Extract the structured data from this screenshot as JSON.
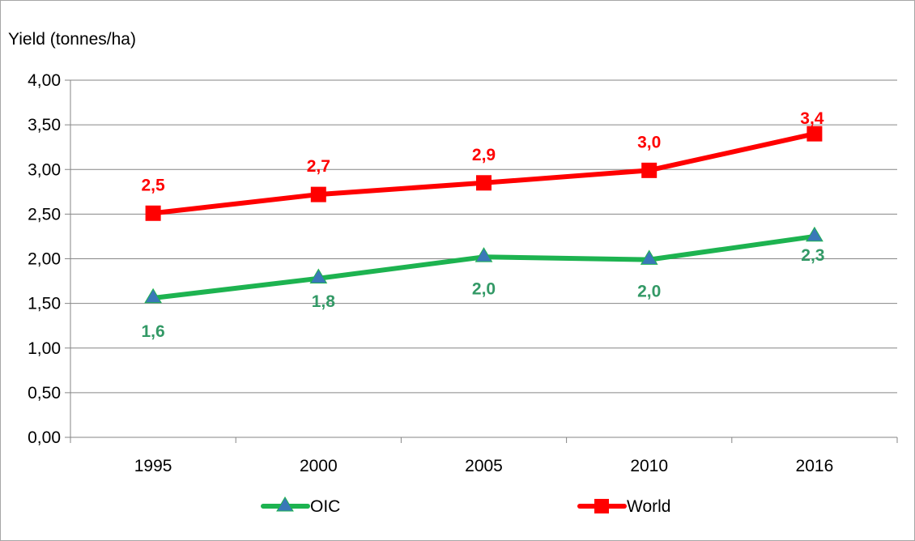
{
  "chart_data": {
    "type": "line",
    "ylabel": "Yield (tonnes/ha)",
    "xlabel": "",
    "categories": [
      "1995",
      "2000",
      "2005",
      "2010",
      "2016"
    ],
    "ylim": [
      0,
      4
    ],
    "yticks": [
      0,
      0.5,
      1,
      1.5,
      2,
      2.5,
      3,
      3.5,
      4
    ],
    "ytick_labels": [
      "0,00",
      "0,50",
      "1,00",
      "1,50",
      "2,00",
      "2,50",
      "3,00",
      "3,50",
      "4,00"
    ],
    "grid": true,
    "legend_position": "bottom",
    "series": [
      {
        "name": "OIC",
        "values": [
          1.56,
          1.78,
          2.02,
          1.99,
          2.25
        ],
        "labels": [
          "1,6",
          "1,8",
          "2,0",
          "2,0",
          "2,3"
        ],
        "line_color": "#1db350",
        "marker": "triangle",
        "marker_color": "#3a78b8",
        "label_color": "#339966"
      },
      {
        "name": "World",
        "values": [
          2.51,
          2.72,
          2.85,
          2.99,
          3.4
        ],
        "labels": [
          "2,5",
          "2,7",
          "2,9",
          "3,0",
          "3,4"
        ],
        "line_color": "#ff0000",
        "marker": "square",
        "marker_color": "#ff0000",
        "label_color": "#ff0000"
      }
    ]
  }
}
